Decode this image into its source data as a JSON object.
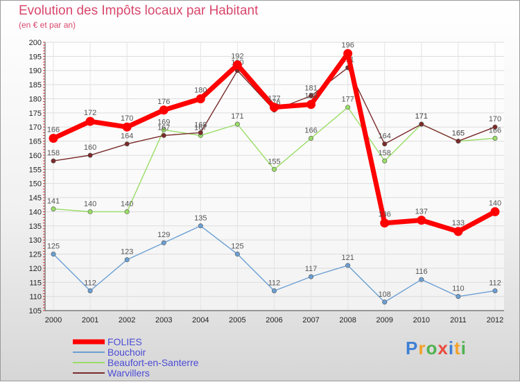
{
  "header": {
    "title": "Evolution des Impôts locaux par Habitant",
    "subtitle": "(en € et par an)"
  },
  "logo": {
    "letters": [
      "P",
      "r",
      "o",
      "x",
      "i",
      "t",
      "i"
    ]
  },
  "colors": {
    "title": "#d8476b",
    "legend_text": "#4b4bd6",
    "FOLIES": "#ff0000",
    "Bouchoir": "#6b9fd3",
    "Beaufort-en-Santerre": "#99dd66",
    "Warvillers": "#7a2a2a"
  },
  "chart_data": {
    "type": "line",
    "x": [
      2000,
      2001,
      2002,
      2003,
      2004,
      2005,
      2006,
      2007,
      2008,
      2009,
      2010,
      2011,
      2012
    ],
    "ylim": [
      105,
      200
    ],
    "yticks": [
      105,
      110,
      115,
      120,
      125,
      130,
      135,
      140,
      145,
      150,
      155,
      160,
      165,
      170,
      175,
      180,
      185,
      190,
      195,
      200
    ],
    "grid": true,
    "legend": "bottom-left",
    "series": [
      {
        "name": "FOLIES",
        "values": [
          166,
          172,
          170,
          176,
          180,
          192,
          177,
          178,
          196,
          136,
          137,
          133,
          140
        ]
      },
      {
        "name": "Bouchoir",
        "values": [
          125,
          112,
          123,
          129,
          135,
          125,
          112,
          117,
          121,
          108,
          116,
          110,
          112
        ]
      },
      {
        "name": "Beaufort-en-Santerre",
        "values": [
          141,
          140,
          140,
          169,
          167,
          171,
          155,
          166,
          177,
          158,
          171,
          165,
          166
        ]
      },
      {
        "name": "Warvillers",
        "values": [
          158,
          160,
          164,
          167,
          168,
          190,
          176,
          181,
          191,
          164,
          171,
          165,
          170
        ]
      }
    ]
  }
}
